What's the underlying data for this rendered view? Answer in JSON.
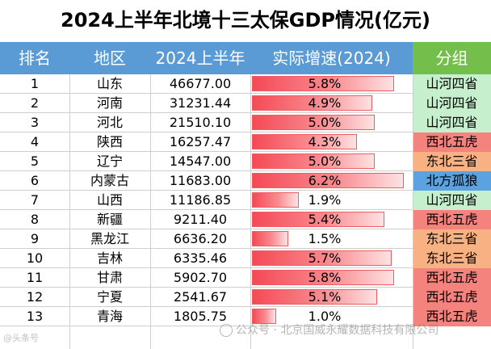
{
  "title": "2024上半年北境十三太保GDP情况(亿元)",
  "headers": [
    "排名",
    "地区",
    "2024上半年",
    "实际增速(2024)",
    "分组"
  ],
  "colors": {
    "header_bg": "#5b9bd5",
    "header_group_bg": "#74bf4c",
    "group_shanhe": "#c6efce",
    "group_xibei": "#f4837d",
    "group_dongbei": "#f8b183",
    "group_beifang": "#5ba3e0"
  },
  "rows": [
    {
      "rank": "1",
      "region": "山东",
      "gdp": "46677.00",
      "growth": "5.8%",
      "growth_value": 5.8,
      "group": "山河四省",
      "group_color": "#c6efce"
    },
    {
      "rank": "2",
      "region": "河南",
      "gdp": "31231.44",
      "growth": "4.9%",
      "growth_value": 4.9,
      "group": "山河四省",
      "group_color": "#c6efce"
    },
    {
      "rank": "3",
      "region": "河北",
      "gdp": "21510.10",
      "growth": "5.0%",
      "growth_value": 5.0,
      "group": "山河四省",
      "group_color": "#c6efce"
    },
    {
      "rank": "4",
      "region": "陕西",
      "gdp": "16257.47",
      "growth": "4.3%",
      "growth_value": 4.3,
      "group": "西北五虎",
      "group_color": "#f4837d"
    },
    {
      "rank": "5",
      "region": "辽宁",
      "gdp": "14547.00",
      "growth": "5.0%",
      "growth_value": 5.0,
      "group": "东北三省",
      "group_color": "#f8b183"
    },
    {
      "rank": "6",
      "region": "内蒙古",
      "gdp": "11683.00",
      "growth": "6.2%",
      "growth_value": 6.2,
      "group": "北方孤狼",
      "group_color": "#5ba3e0"
    },
    {
      "rank": "7",
      "region": "山西",
      "gdp": "11186.85",
      "growth": "1.9%",
      "growth_value": 1.9,
      "group": "山河四省",
      "group_color": "#c6efce"
    },
    {
      "rank": "8",
      "region": "新疆",
      "gdp": "9211.40",
      "growth": "5.4%",
      "growth_value": 5.4,
      "group": "西北五虎",
      "group_color": "#f4837d"
    },
    {
      "rank": "9",
      "region": "黑龙江",
      "gdp": "6636.20",
      "growth": "1.5%",
      "growth_value": 1.5,
      "group": "东北三省",
      "group_color": "#f8b183"
    },
    {
      "rank": "10",
      "region": "吉林",
      "gdp": "6335.46",
      "growth": "5.7%",
      "growth_value": 5.7,
      "group": "东北三省",
      "group_color": "#f8b183"
    },
    {
      "rank": "11",
      "region": "甘肃",
      "gdp": "5902.70",
      "growth": "5.8%",
      "growth_value": 5.8,
      "group": "西北五虎",
      "group_color": "#f4837d"
    },
    {
      "rank": "12",
      "region": "宁夏",
      "gdp": "2541.67",
      "growth": "5.1%",
      "growth_value": 5.1,
      "group": "西北五虎",
      "group_color": "#f4837d"
    },
    {
      "rank": "13",
      "region": "青海",
      "gdp": "1805.75",
      "growth": "1.0%",
      "growth_value": 1.0,
      "group": "西北五虎",
      "group_color": "#f4837d"
    }
  ],
  "growth_scale_max": 6.2,
  "watermark": "公众号 · 北京国威永耀数据科技有限公司",
  "watermark_small": "@头条号"
}
